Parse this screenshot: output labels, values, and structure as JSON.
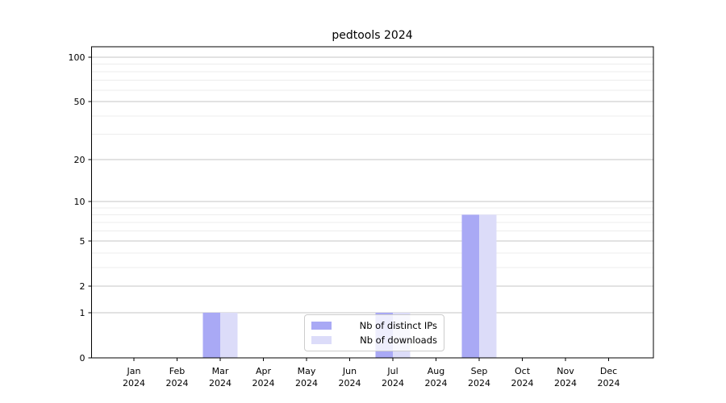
{
  "figure_title": "pedtools 2024",
  "chart_data": {
    "type": "bar",
    "title": "pedtools 2024",
    "yscale": "log10(1+x)",
    "ylim": [
      0,
      117
    ],
    "grid": "horizontal",
    "legend_position": "lower center",
    "year_label": "2024",
    "categories": [
      "Jan",
      "Feb",
      "Mar",
      "Apr",
      "May",
      "Jun",
      "Jul",
      "Aug",
      "Sep",
      "Oct",
      "Nov",
      "Dec"
    ],
    "series": [
      {
        "name": "Nb of distinct IPs",
        "color": "#a9a9f5",
        "values": [
          0,
          0,
          1,
          0,
          0,
          0,
          1,
          0,
          8,
          0,
          0,
          0
        ]
      },
      {
        "name": "Nb of downloads",
        "color": "#dcdcf9",
        "values": [
          0,
          0,
          1,
          0,
          0,
          0,
          1,
          0,
          8,
          0,
          0,
          0
        ]
      }
    ],
    "y_major_ticks": [
      0,
      1,
      2,
      5,
      10,
      20,
      50,
      100
    ],
    "y_minor_ticks": [
      3,
      4,
      6,
      7,
      8,
      9,
      30,
      40,
      60,
      70,
      80,
      90
    ]
  },
  "colors": {
    "background": "#ffffff",
    "axis": "#000000",
    "grid_major": "#c6c6c6",
    "grid_minor": "#ececec",
    "tick_text": "#000000",
    "legend_border": "#cccccc"
  }
}
